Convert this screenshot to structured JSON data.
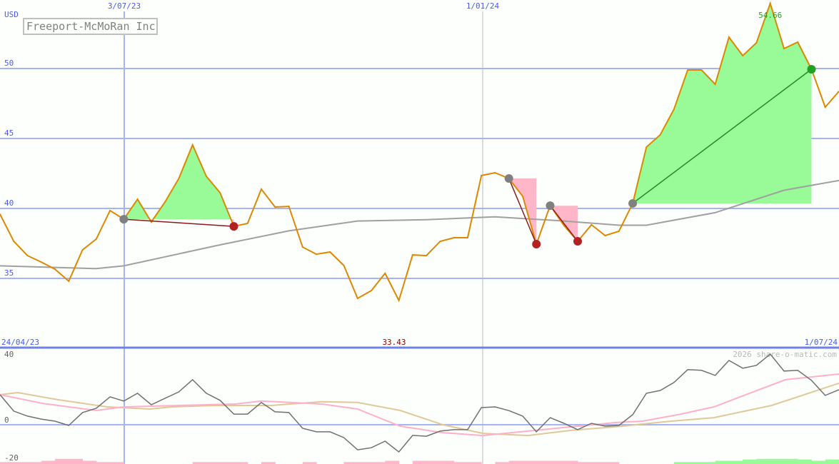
{
  "chart_data": {
    "type": "line",
    "title": "Freeport-McMoRan Inc",
    "currency_label": "USD",
    "start_date_label": "24/04/23",
    "end_date_label": "1/07/24",
    "date_markers": [
      "3/07/23",
      "1/01/24"
    ],
    "date_marker_index": [
      9,
      35
    ],
    "min_label": "33.43",
    "max_label": "54.66",
    "watermark": "2026 share-o-matic.com",
    "price_panel": {
      "ylim": [
        31.3,
        55
      ],
      "yticks": [
        35,
        40,
        45,
        50
      ],
      "price": [
        39.59,
        37.65,
        36.63,
        36.17,
        35.66,
        34.8,
        37.04,
        37.81,
        39.85,
        39.23,
        40.66,
        39.03,
        40.46,
        42.14,
        44.54,
        42.3,
        41.12,
        38.72,
        38.93,
        41.38,
        40.1,
        40.15,
        37.24,
        36.73,
        36.89,
        35.92,
        33.57,
        34.13,
        35.36,
        33.43,
        36.68,
        36.63,
        37.65,
        37.91,
        37.91,
        42.35,
        42.55,
        42.14,
        40.87,
        37.45,
        40.2,
        38.78,
        37.65,
        38.83,
        38.06,
        38.37,
        40.36,
        44.39,
        45.26,
        47.09,
        49.9,
        49.9,
        48.88,
        52.24,
        50.92,
        51.84,
        54.66,
        51.43,
        51.89,
        49.95,
        47.24,
        48.37
      ],
      "moving_average_knots": [
        [
          0,
          35.9
        ],
        [
          7,
          35.7
        ],
        [
          9,
          35.9
        ],
        [
          16,
          37.4
        ],
        [
          21,
          38.4
        ],
        [
          26,
          39.1
        ],
        [
          31,
          39.2
        ],
        [
          36,
          39.4
        ],
        [
          41,
          39.1
        ],
        [
          45,
          38.8
        ],
        [
          47,
          38.8
        ],
        [
          52,
          39.7
        ],
        [
          57,
          41.3
        ],
        [
          61,
          42.0
        ]
      ],
      "trades": [
        {
          "entry": 9,
          "exit": 17,
          "result": "loss"
        },
        {
          "entry": 37,
          "exit": 39,
          "result": "loss"
        },
        {
          "entry": 40,
          "exit": 42,
          "result": "loss"
        },
        {
          "entry": 46,
          "exit": 59,
          "result": "win"
        }
      ]
    },
    "oscillator_panel": {
      "ylim": [
        -22,
        44
      ],
      "yticks": [
        40,
        0,
        -20
      ],
      "oscillator": [
        17,
        7.7,
        4.9,
        3.2,
        2,
        -0.4,
        6.9,
        9.3,
        15.8,
        13.4,
        17.8,
        11.3,
        15,
        18.6,
        25.5,
        17.8,
        13.8,
        6,
        6,
        12.6,
        7.3,
        6.9,
        -2,
        -4,
        -4,
        -7.3,
        -14.2,
        -13,
        -9.3,
        -15.4,
        -6,
        -6.5,
        -3.6,
        -2.8,
        -2.8,
        9.7,
        10.1,
        8,
        4.9,
        -4,
        4,
        0.8,
        -2.8,
        0.8,
        -0.8,
        -0.4,
        5.7,
        17.8,
        19.4,
        23.9,
        31.2,
        30.8,
        27.9,
        36.4,
        32,
        33.6,
        40,
        30.4,
        30.8,
        25.1,
        16.6,
        19.8
      ],
      "signal_fast_knots": [
        [
          0,
          17
        ],
        [
          3.1,
          12.1
        ],
        [
          7,
          8.1
        ],
        [
          9,
          10.1
        ],
        [
          13,
          10.9
        ],
        [
          17.1,
          11.7
        ],
        [
          19,
          13.4
        ],
        [
          23.4,
          11.7
        ],
        [
          26,
          8.9
        ],
        [
          29.1,
          -0.8
        ],
        [
          32.2,
          -4.5
        ],
        [
          35.1,
          -6.1
        ],
        [
          38.9,
          -3.2
        ],
        [
          41.5,
          -1.2
        ],
        [
          44.7,
          1.2
        ],
        [
          46.7,
          2
        ],
        [
          49.3,
          5.7
        ],
        [
          51.9,
          10.1
        ],
        [
          57.1,
          25.5
        ],
        [
          61,
          28.7
        ]
      ],
      "signal_slow_knots": [
        [
          0,
          17
        ],
        [
          1.3,
          18.2
        ],
        [
          4.2,
          14.2
        ],
        [
          7.8,
          10.1
        ],
        [
          10.9,
          8.9
        ],
        [
          12.5,
          10.1
        ],
        [
          15.6,
          10.9
        ],
        [
          19.7,
          10.9
        ],
        [
          23.4,
          13
        ],
        [
          26,
          12.6
        ],
        [
          29.1,
          8.1
        ],
        [
          32.2,
          0
        ],
        [
          35.1,
          -4.9
        ],
        [
          38.4,
          -6.1
        ],
        [
          41.5,
          -3.2
        ],
        [
          44.7,
          -1.2
        ],
        [
          48.8,
          2
        ],
        [
          51.9,
          4
        ],
        [
          56.1,
          10.9
        ],
        [
          61,
          23.5
        ]
      ],
      "histogram": [
        -1.5,
        -1.5,
        -1.5,
        -2.5,
        -4,
        -4,
        -2.5,
        -1.5,
        -1.5,
        0,
        0,
        0,
        0,
        0,
        -1.5,
        -1.5,
        -1.5,
        -1.5,
        0,
        -1.5,
        0,
        0,
        -1.5,
        0,
        0,
        -1.5,
        -1.5,
        -1.5,
        -2.5,
        0,
        -2.5,
        -2.5,
        -2.5,
        -1.5,
        -1.5,
        0,
        -1.5,
        -2.5,
        -2.5,
        -2.5,
        -2.5,
        -2.5,
        -1.5,
        -1.5,
        -1.5,
        0,
        0,
        0,
        0,
        1.5,
        1.5,
        1.5,
        2.5,
        2.5,
        3.5,
        4,
        4,
        4,
        3.5,
        2.5,
        3.5,
        3.5
      ]
    },
    "colors": {
      "price": "#dd8800",
      "moving_average": "#a0a0a0",
      "grid": "#a4b4f4",
      "axis": "#6f80e8",
      "win_fill": "#98fb98",
      "loss_fill": "#ffb6c8",
      "entry_dot": "#808080",
      "loss_dot": "#b22222",
      "win_dot": "#22a022",
      "loss_line": "#8b1a1a",
      "win_line": "#228b22",
      "oscillator": "#707070",
      "signal_fast": "#ffb0c8",
      "signal_slow": "#e0c898",
      "label": "#4a5af0",
      "min_label": "#a00000"
    }
  }
}
